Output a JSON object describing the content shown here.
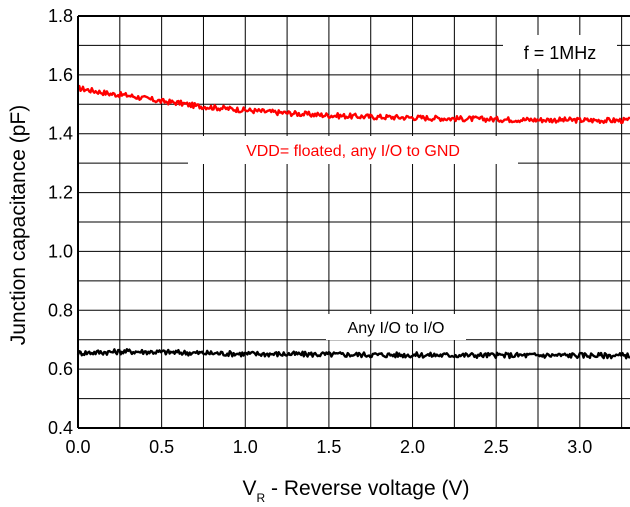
{
  "chart_data": {
    "type": "line",
    "xlabel_main": "V",
    "xlabel_sub": "R",
    "xlabel_rest": " - Reverse voltage (V)",
    "ylabel": "Junction capacitance (pF)",
    "xlim": [
      0,
      3.3
    ],
    "ylim": [
      0.4,
      1.8
    ],
    "x_ticks": [
      0.0,
      0.5,
      1.0,
      1.5,
      2.0,
      2.5,
      3.0
    ],
    "x_tick_labels": [
      "0.0",
      "0.5",
      "1.0",
      "1.5",
      "2.0",
      "2.5",
      "3.0"
    ],
    "y_ticks": [
      0.4,
      0.6,
      0.8,
      1.0,
      1.2,
      1.4,
      1.6,
      1.8
    ],
    "y_tick_labels": [
      "0.4",
      "0.6",
      "0.8",
      "1.0",
      "1.2",
      "1.4",
      "1.6",
      "1.8"
    ],
    "grid": true,
    "annotation": "f = 1MHz",
    "series": [
      {
        "name": "VDD= floated, any I/O to GND",
        "color": "#ff0000",
        "x": [
          0.0,
          0.1,
          0.2,
          0.3,
          0.4,
          0.5,
          0.6,
          0.7,
          0.8,
          0.9,
          1.0,
          1.2,
          1.4,
          1.6,
          1.8,
          2.0,
          2.2,
          2.4,
          2.6,
          2.8,
          3.0,
          3.2,
          3.3
        ],
        "values": [
          1.555,
          1.545,
          1.535,
          1.53,
          1.52,
          1.51,
          1.505,
          1.495,
          1.49,
          1.485,
          1.48,
          1.472,
          1.465,
          1.46,
          1.457,
          1.455,
          1.452,
          1.45,
          1.448,
          1.447,
          1.446,
          1.445,
          1.445
        ]
      },
      {
        "name": "Any I/O to I/O",
        "color": "#000000",
        "x": [
          0.0,
          0.3,
          0.5,
          0.7,
          1.0,
          1.5,
          2.0,
          2.5,
          3.0,
          3.3
        ],
        "values": [
          0.655,
          0.66,
          0.658,
          0.655,
          0.652,
          0.65,
          0.648,
          0.647,
          0.647,
          0.646
        ]
      }
    ]
  }
}
